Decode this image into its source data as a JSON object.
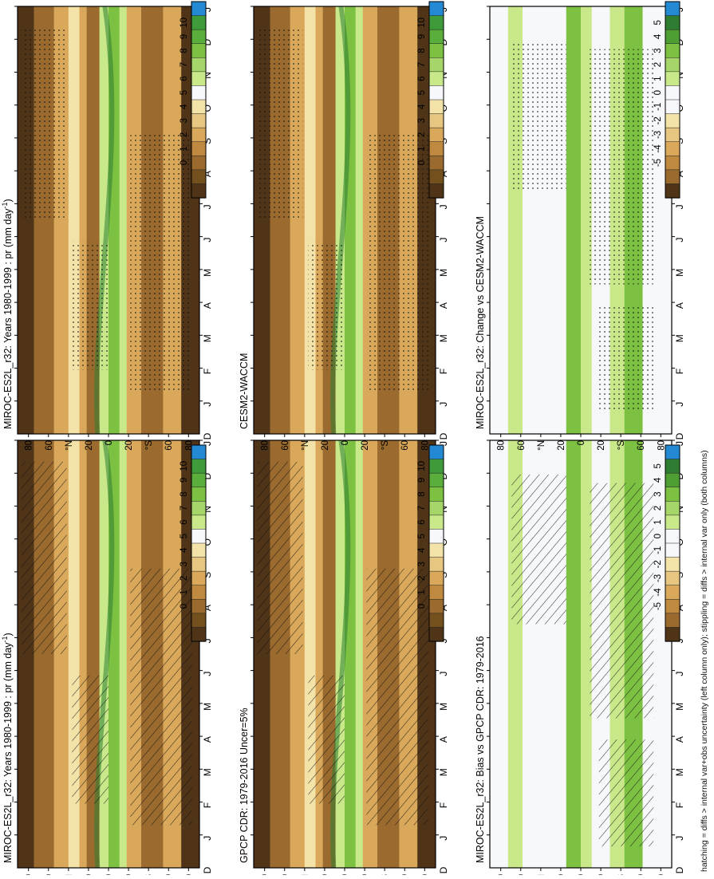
{
  "chart_data": {
    "type": "heatmap",
    "figure": "Zonal-mean precipitation annual cycle (latitude vs month), six panels, figure rotated 90 degrees",
    "months": [
      "J",
      "F",
      "M",
      "A",
      "M",
      "J",
      "J",
      "A",
      "S",
      "O",
      "N",
      "D",
      "J"
    ],
    "month_axis_end_label": "D",
    "latitude_ticks": [
      "80",
      "60",
      "°N",
      "20",
      "0",
      "20",
      "°S",
      "60",
      "80"
    ],
    "footer": "hatching = diffs > internal var+obs uncertainty (left column only); stippling = diffs > internal var only (both columns)",
    "colors": {
      "blue": "#2389d2",
      "dkgreen": "#2e7d32",
      "green": "#7cc142",
      "ltgreen": "#c8e88a",
      "white": "#f7f8fc",
      "cream": "#f3e3a8",
      "tan": "#d9a85a",
      "brown": "#9a6a2e",
      "dkbrown": "#4f3418"
    },
    "panels": [
      {
        "title": "MIROC-ES2L_r32: Years 1980-1999 : pr (mm day",
        "title_sup": "-1",
        "title_end": ")",
        "kind": "clim",
        "pattern": "hatch"
      },
      {
        "title": "GPCP CDR: 1979-2016 Uncer=5%",
        "title_sup": "",
        "title_end": "",
        "kind": "clim",
        "pattern": "hatch"
      },
      {
        "title": "MIROC-ES2L_r32: Bias vs GPCP CDR: 1979-2016",
        "title_sup": "",
        "title_end": "",
        "kind": "diff",
        "pattern": "hatch"
      },
      {
        "title": "MIROC-ES2L_r32: Years 1980-1999 : pr (mm day",
        "title_sup": "-1",
        "title_end": ")",
        "kind": "clim",
        "pattern": "stipple"
      },
      {
        "title": "CESM2-WACCM",
        "title_sup": "",
        "title_end": "",
        "kind": "clim",
        "pattern": "stipple"
      },
      {
        "title": "MIROC-ES2L_r32: Change vs CESM2-WACCM",
        "title_sup": "",
        "title_end": "",
        "kind": "diff",
        "pattern": "stipple"
      }
    ],
    "colorbars": {
      "clim": {
        "labels": [
          "10",
          "9",
          "8",
          "7",
          "6",
          "5",
          "4",
          "3",
          "2",
          "1",
          "0"
        ],
        "colors": [
          "#2389d2",
          "#3f9a3a",
          "#5aae3c",
          "#7cc142",
          "#a6d66a",
          "#c8e88a",
          "#f7f8fc",
          "#f3e3a8",
          "#e6c680",
          "#d9a85a",
          "#c08940",
          "#9a6a2e",
          "#75501f",
          "#4f3418"
        ]
      },
      "diff": {
        "labels": [
          "5",
          "4",
          "3",
          "2",
          "1",
          "0",
          "-1",
          "-2",
          "-3",
          "-4",
          "-5"
        ],
        "colors": [
          "#2389d2",
          "#2e7d32",
          "#4f9e33",
          "#7cc142",
          "#a6d66a",
          "#c8e88a",
          "#f7f8fc",
          "#f7f8fc",
          "#f3e3a8",
          "#e6c680",
          "#d9a85a",
          "#c08940",
          "#9a6a2e",
          "#4f3418"
        ]
      }
    }
  }
}
